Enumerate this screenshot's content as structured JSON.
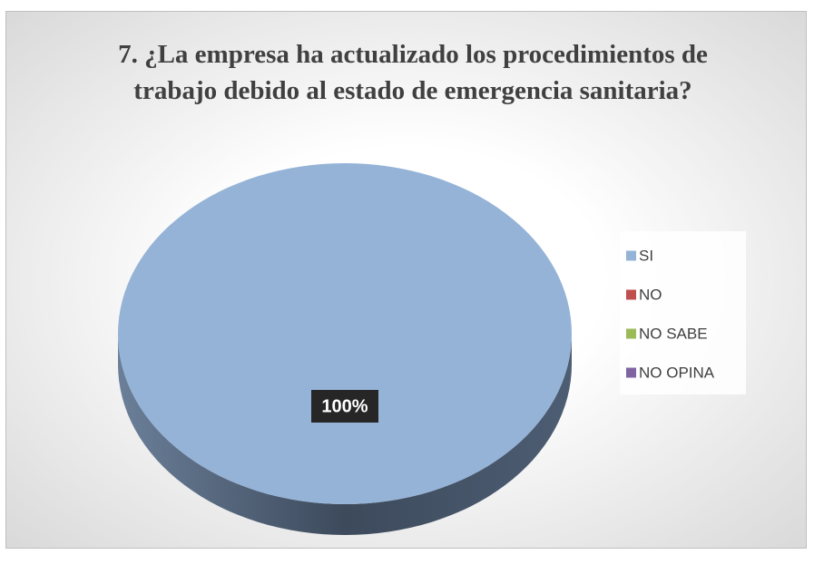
{
  "chart_data": {
    "type": "pie",
    "title": "7. ¿La empresa ha actualizado los procedimientos de trabajo debido al estado de emergencia sanitaria?",
    "categories": [
      "SI",
      "NO",
      "NO SABE",
      "NO OPINA"
    ],
    "values": [
      100,
      0,
      0,
      0
    ],
    "value_labels": [
      "100%",
      null,
      null,
      null
    ],
    "colors": [
      "#95b3d7",
      "#c0504d",
      "#9bbb59",
      "#8064a2"
    ],
    "legend": "right"
  }
}
